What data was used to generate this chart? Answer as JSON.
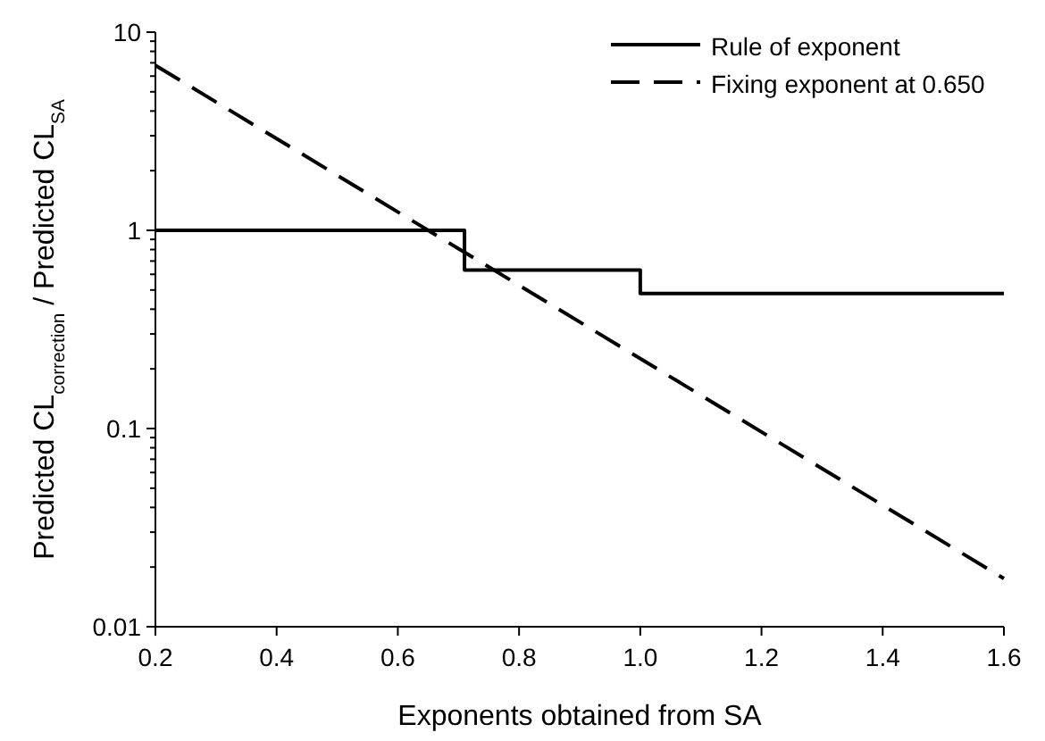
{
  "chart_data": {
    "type": "line",
    "xlabel": "Exponents obtained from SA",
    "ylabel": "Predicted CL$_{correction}$ / Predicted CL$_{SA}$",
    "log": "y",
    "xlim": [
      0.2,
      1.6
    ],
    "xticks": [
      0.2,
      0.4,
      0.6,
      0.8,
      {
        "value": 1,
        "label": "1.0"
      },
      1.2,
      1.4,
      1.6
    ],
    "ylim": [
      0.01,
      10
    ],
    "yticks": [
      0.01,
      {
        "value": 0.02,
        "label": null
      },
      {
        "value": 0.03,
        "label": null
      },
      {
        "value": 0.04,
        "label": null
      },
      {
        "value": 0.05,
        "label": null
      },
      {
        "value": 0.06,
        "label": null
      },
      {
        "value": 0.07,
        "label": null
      },
      {
        "value": 0.08,
        "label": null
      },
      {
        "value": 0.09,
        "label": null
      },
      0.1,
      {
        "value": 0.2,
        "label": null
      },
      {
        "value": 0.3,
        "label": null
      },
      {
        "value": 0.4,
        "label": null
      },
      {
        "value": 0.5,
        "label": null
      },
      {
        "value": 0.6,
        "label": null
      },
      {
        "value": 0.7,
        "label": null
      },
      {
        "value": 0.8,
        "label": null
      },
      {
        "value": 0.9,
        "label": null
      },
      1,
      {
        "value": 2,
        "label": null
      },
      {
        "value": 3,
        "label": null
      },
      {
        "value": 4,
        "label": null
      },
      {
        "value": 5,
        "label": null
      },
      {
        "value": 6,
        "label": null
      },
      {
        "value": 7,
        "label": null
      },
      {
        "value": 8,
        "label": null
      },
      {
        "value": 9,
        "label": null
      },
      10
    ],
    "grid": false,
    "legend": "top right",
    "series": [
      {
        "name": "Rule of exponent",
        "type": "step",
        "color": "#000000",
        "line_style": "solid",
        "x": [
          0.2,
          0.71,
          1.0,
          1.6
        ],
        "values": [
          1,
          0.63,
          0.48,
          0.48
        ]
      },
      {
        "name": "Fixing exponent at 0.650",
        "type": "line",
        "color": "#000000",
        "line_style": "dashed",
        "x": [
          0.2,
          1.6
        ],
        "values": [
          6.8,
          0.0175
        ]
      }
    ]
  }
}
